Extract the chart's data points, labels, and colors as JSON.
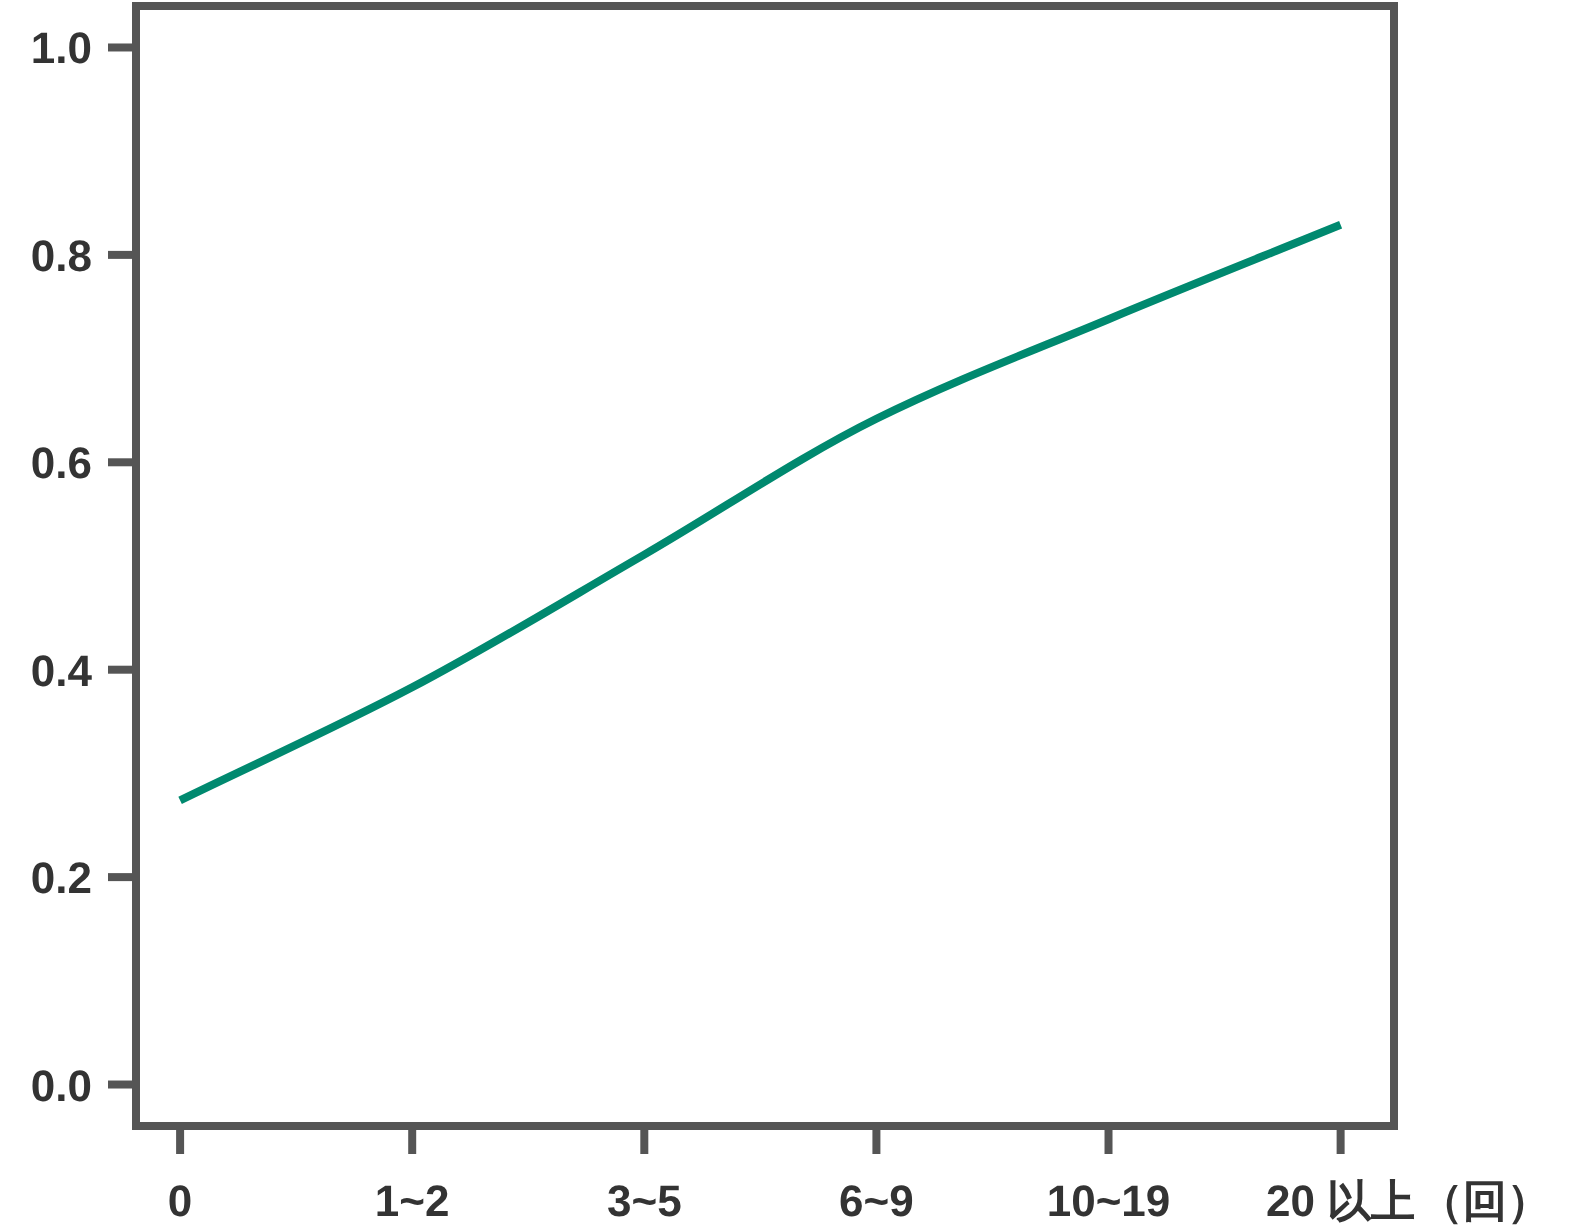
{
  "chart_data": {
    "type": "line",
    "categories": [
      "0",
      "1~2",
      "3~5",
      "6~9",
      "10~19",
      "20 以上"
    ],
    "xlabel": "（回）",
    "series": [
      {
        "color": "#00896f",
        "values": [
          0.274,
          0.383,
          0.511,
          0.642,
          0.738,
          0.829
        ]
      }
    ],
    "ylim": [
      -0.04,
      1.04
    ],
    "yticks": [
      {
        "value": 0,
        "label": "0.0"
      },
      {
        "value": 0.2,
        "label": "0.2"
      },
      {
        "value": 0.4,
        "label": "0.4"
      },
      {
        "value": 0.6,
        "label": "0.6"
      },
      {
        "value": 0.8,
        "label": "0.8"
      },
      {
        "value": 1,
        "label": "1.0"
      }
    ],
    "marker": "none",
    "line_style": "solid"
  }
}
